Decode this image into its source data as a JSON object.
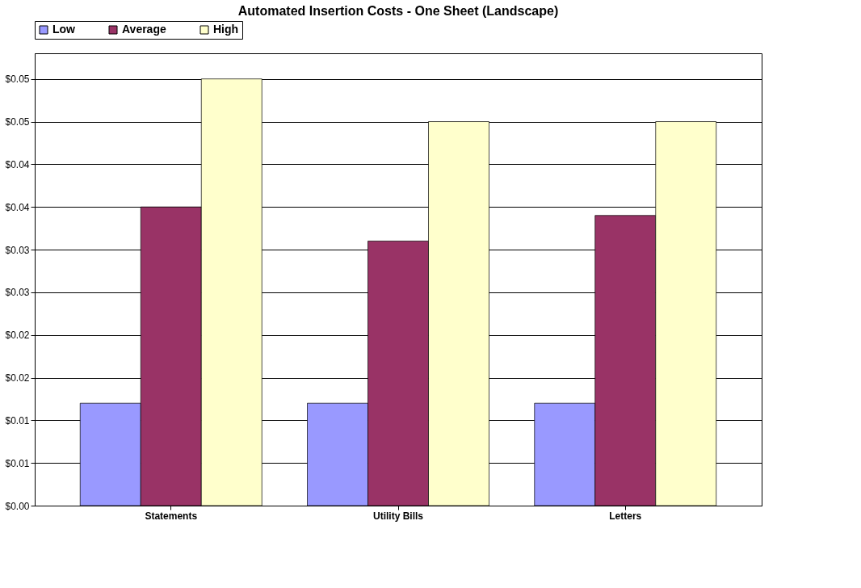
{
  "chart_data": {
    "type": "bar",
    "title": "Automated Insertion Costs - One Sheet (Landscape)",
    "categories": [
      "Statements",
      "Utility Bills",
      "Letters"
    ],
    "series": [
      {
        "name": "Low",
        "color": "#9999ff",
        "values": [
          0.012,
          0.012,
          0.012
        ]
      },
      {
        "name": "Average",
        "color": "#993366",
        "values": [
          0.035,
          0.031,
          0.034
        ]
      },
      {
        "name": "High",
        "color": "#ffffcc",
        "values": [
          0.05,
          0.045,
          0.045
        ]
      }
    ],
    "ylim": [
      0,
      0.053
    ],
    "yticks": [
      {
        "value": 0,
        "label": "$0.00"
      },
      {
        "value": 0.005,
        "label": "$0.01"
      },
      {
        "value": 0.01,
        "label": "$0.01"
      },
      {
        "value": 0.015,
        "label": "$0.02"
      },
      {
        "value": 0.02,
        "label": "$0.02"
      },
      {
        "value": 0.025,
        "label": "$0.03"
      },
      {
        "value": 0.03,
        "label": "$0.03"
      },
      {
        "value": 0.035,
        "label": "$0.04"
      },
      {
        "value": 0.04,
        "label": "$0.04"
      },
      {
        "value": 0.045,
        "label": "$0.05"
      },
      {
        "value": 0.05,
        "label": "$0.05"
      }
    ],
    "grid": "y",
    "legend": "top"
  }
}
